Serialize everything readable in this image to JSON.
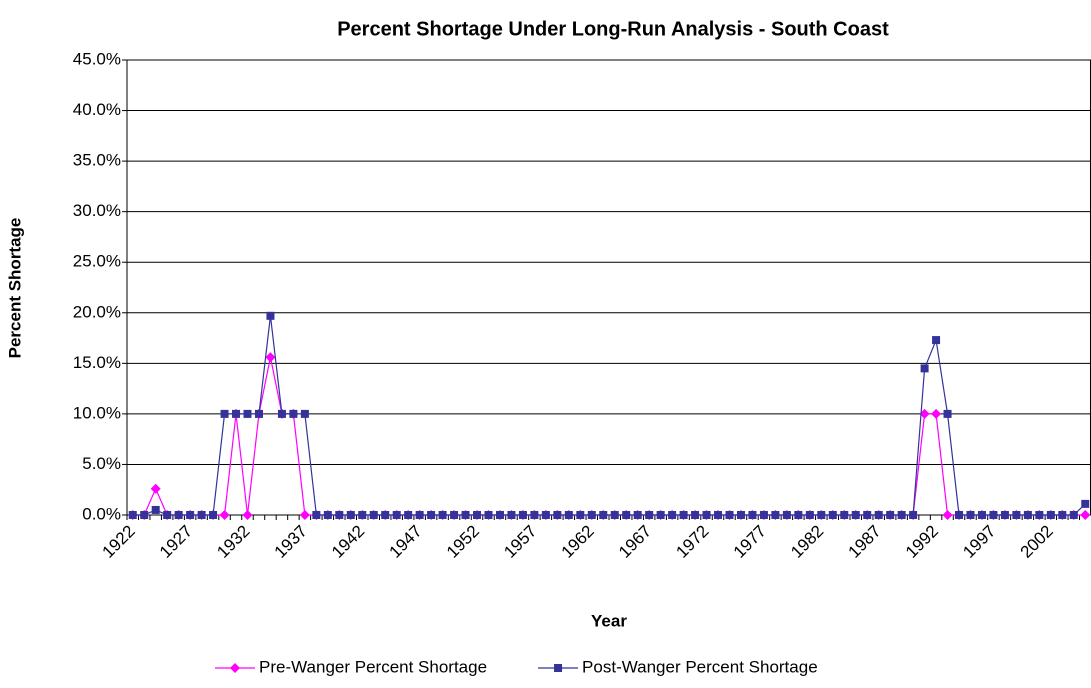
{
  "chart_data": {
    "type": "line",
    "title": "Percent Shortage Under Long-Run Analysis - South Coast",
    "x_label": "Year",
    "y_label": "Percent Shortage",
    "categories": [
      "1922",
      null,
      null,
      null,
      null,
      "1927",
      null,
      null,
      null,
      null,
      "1932",
      null,
      null,
      null,
      null,
      "1937",
      null,
      null,
      null,
      null,
      "1942",
      null,
      null,
      null,
      null,
      "1947",
      null,
      null,
      null,
      null,
      "1952",
      null,
      null,
      null,
      null,
      "1957",
      null,
      null,
      null,
      null,
      "1962",
      null,
      null,
      null,
      null,
      "1967",
      null,
      null,
      null,
      null,
      "1972",
      null,
      null,
      null,
      null,
      "1977",
      null,
      null,
      null,
      null,
      "1982",
      null,
      null,
      null,
      null,
      "1987",
      null,
      null,
      null,
      null,
      "1992",
      null,
      null,
      null,
      null,
      "1997",
      null,
      null,
      null,
      null,
      "2002",
      null,
      null,
      null
    ],
    "series": [
      {
        "name": "Pre-Wanger Percent Shortage",
        "color": "#ff00ff",
        "marker": "diamond",
        "values": [
          0,
          0,
          2.6,
          0,
          0,
          0,
          0,
          0,
          0,
          10,
          0,
          10,
          15.6,
          10,
          10,
          0,
          0,
          0,
          0,
          0,
          0,
          0,
          0,
          0,
          0,
          0,
          0,
          0,
          0,
          0,
          0,
          0,
          0,
          0,
          0,
          0,
          0,
          0,
          0,
          0,
          0,
          0,
          0,
          0,
          0,
          0,
          0,
          0,
          0,
          0,
          0,
          0,
          0,
          0,
          0,
          0,
          0,
          0,
          0,
          0,
          0,
          0,
          0,
          0,
          0,
          0,
          0,
          0,
          0,
          10,
          10,
          0,
          0,
          0,
          0,
          0,
          0,
          0,
          0,
          0,
          0,
          0,
          0,
          0
        ]
      },
      {
        "name": "Post-Wanger Percent Shortage",
        "color": "#333399",
        "marker": "square",
        "values": [
          0,
          0,
          0.5,
          0,
          0,
          0,
          0,
          0,
          10,
          10,
          10,
          10,
          19.7,
          10,
          10,
          10,
          0,
          0,
          0,
          0,
          0,
          0,
          0,
          0,
          0,
          0,
          0,
          0,
          0,
          0,
          0,
          0,
          0,
          0,
          0,
          0,
          0,
          0,
          0,
          0,
          0,
          0,
          0,
          0,
          0,
          0,
          0,
          0,
          0,
          0,
          0,
          0,
          0,
          0,
          0,
          0,
          0,
          0,
          0,
          0,
          0,
          0,
          0,
          0,
          0,
          0,
          0,
          0,
          0,
          14.5,
          17.3,
          10,
          0,
          0,
          0,
          0,
          0,
          0,
          0,
          0,
          0,
          0,
          0,
          1.1
        ]
      }
    ],
    "ylim": [
      0,
      45
    ],
    "yticks": [
      {
        "value": 0,
        "label": "0.0%"
      },
      {
        "value": 5,
        "label": "5.0%"
      },
      {
        "value": 10,
        "label": "10.0%"
      },
      {
        "value": 15,
        "label": "15.0%"
      },
      {
        "value": 20,
        "label": "20.0%"
      },
      {
        "value": 25,
        "label": "25.0%"
      },
      {
        "value": 30,
        "label": "30.0%"
      },
      {
        "value": 35,
        "label": "35.0%"
      },
      {
        "value": 40,
        "label": "40.0%"
      },
      {
        "value": 45,
        "label": "45.0%"
      }
    ],
    "grid": true,
    "legend": "bottom"
  }
}
